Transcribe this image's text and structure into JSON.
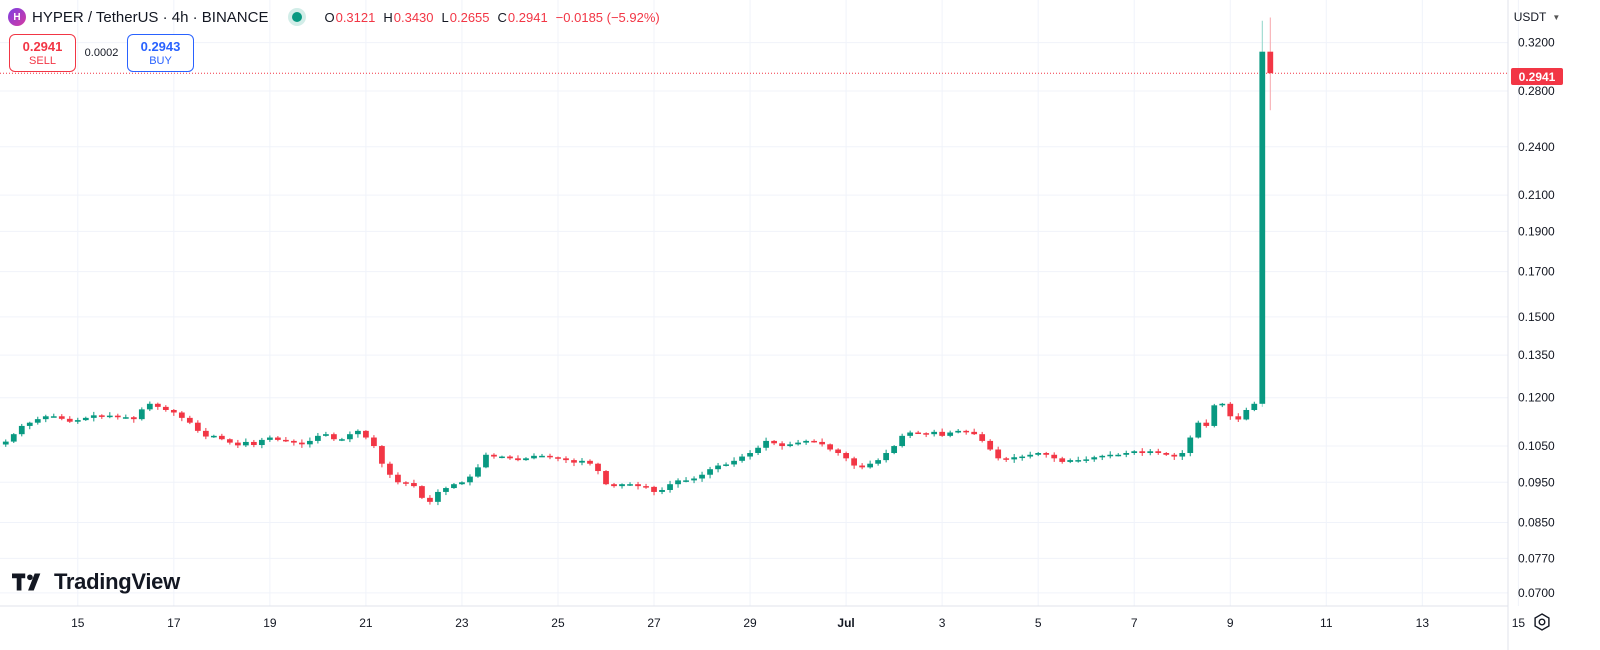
{
  "header": {
    "logo_letter": "H",
    "symbol_title": "HYPER / TetherUS · 4h · BINANCE",
    "ohlc": [
      {
        "label": "O",
        "value": "0.3121"
      },
      {
        "label": "H",
        "value": "0.3430"
      },
      {
        "label": "L",
        "value": "0.2655"
      },
      {
        "label": "C",
        "value": "0.2941"
      },
      {
        "label": "",
        "value": "−0.0185 (−5.92%)"
      }
    ]
  },
  "trade": {
    "sell_price": "0.2941",
    "sell_label": "SELL",
    "spread": "0.0002",
    "buy_price": "0.2943",
    "buy_label": "BUY"
  },
  "currency": "USDT",
  "last_price_label": "0.2941",
  "branding": "TradingView",
  "colors": {
    "up": "#089981",
    "down": "#f23645",
    "grid": "#f0f3fa",
    "price_line": "#f23645"
  },
  "chart_data": {
    "type": "candlestick",
    "scale": "log",
    "grid": true,
    "ylim": [
      0.0675,
      0.36
    ],
    "y_ticks": [
      {
        "value": 0.32,
        "label": "0.3200"
      },
      {
        "value": 0.28,
        "label": "0.2800"
      },
      {
        "value": 0.24,
        "label": "0.2400"
      },
      {
        "value": 0.21,
        "label": "0.2100"
      },
      {
        "value": 0.19,
        "label": "0.1900"
      },
      {
        "value": 0.17,
        "label": "0.1700"
      },
      {
        "value": 0.15,
        "label": "0.1500"
      },
      {
        "value": 0.135,
        "label": "0.1350"
      },
      {
        "value": 0.12,
        "label": "0.1200"
      },
      {
        "value": 0.105,
        "label": "0.1050"
      },
      {
        "value": 0.095,
        "label": "0.0950"
      },
      {
        "value": 0.085,
        "label": "0.0850"
      },
      {
        "value": 0.077,
        "label": "0.0770"
      },
      {
        "value": 0.07,
        "label": "0.0700"
      }
    ],
    "x_ticks": [
      {
        "day": 15,
        "label": "15"
      },
      {
        "day": 17,
        "label": "17"
      },
      {
        "day": 19,
        "label": "19"
      },
      {
        "day": 21,
        "label": "21"
      },
      {
        "day": 23,
        "label": "23"
      },
      {
        "day": 25,
        "label": "25"
      },
      {
        "day": 27,
        "label": "27"
      },
      {
        "day": 29,
        "label": "29"
      },
      {
        "day": 31,
        "label": "Jul"
      },
      {
        "day": 33,
        "label": "3"
      },
      {
        "day": 35,
        "label": "5"
      },
      {
        "day": 37,
        "label": "7"
      },
      {
        "day": 39,
        "label": "9"
      },
      {
        "day": 41,
        "label": "11"
      },
      {
        "day": 43,
        "label": "13"
      },
      {
        "day": 45,
        "label": "15"
      }
    ],
    "x_day_range": [
      13.38,
      46.7
    ],
    "candle_start_day": 13.5,
    "candle_interval_days": 0.16667,
    "last_price": 0.2941,
    "closes": [
      0.1063,
      0.1085,
      0.111,
      0.112,
      0.1131,
      0.114,
      0.114,
      0.1132,
      0.1123,
      0.1128,
      0.1135,
      0.1143,
      0.1138,
      0.1142,
      0.1137,
      0.1137,
      0.1131,
      0.1162,
      0.118,
      0.117,
      0.116,
      0.1152,
      0.1135,
      0.112,
      0.1095,
      0.1078,
      0.108,
      0.107,
      0.106,
      0.1052,
      0.1062,
      0.1053,
      0.1068,
      0.1075,
      0.1068,
      0.1065,
      0.106,
      0.1055,
      0.1065,
      0.108,
      0.1085,
      0.107,
      0.107,
      0.1085,
      0.1095,
      0.1075,
      0.105,
      0.1,
      0.097,
      0.095,
      0.0948,
      0.094,
      0.091,
      0.09,
      0.0925,
      0.0935,
      0.0945,
      0.095,
      0.0965,
      0.099,
      0.1025,
      0.102,
      0.102,
      0.1015,
      0.101,
      0.1015,
      0.1022,
      0.1022,
      0.1018,
      0.1015,
      0.101,
      0.1003,
      0.1008,
      0.1,
      0.098,
      0.0945,
      0.094,
      0.0945,
      0.0945,
      0.094,
      0.0938,
      0.0925,
      0.093,
      0.0945,
      0.0955,
      0.0955,
      0.096,
      0.097,
      0.0985,
      0.0995,
      0.0998,
      0.1008,
      0.102,
      0.103,
      0.1045,
      0.1065,
      0.1058,
      0.105,
      0.1055,
      0.106,
      0.1065,
      0.1062,
      0.1055,
      0.104,
      0.103,
      0.1015,
      0.0995,
      0.099,
      0.1,
      0.101,
      0.103,
      0.105,
      0.108,
      0.109,
      0.1088,
      0.1085,
      0.1092,
      0.108,
      0.109,
      0.1095,
      0.1092,
      0.1085,
      0.1065,
      0.104,
      0.1015,
      0.1012,
      0.1018,
      0.102,
      0.1025,
      0.103,
      0.1025,
      0.1015,
      0.1005,
      0.101,
      0.101,
      0.1012,
      0.1018,
      0.1022,
      0.1025,
      0.1025,
      0.103,
      0.1035,
      0.103,
      0.1035,
      0.103,
      0.1025,
      0.102,
      0.103,
      0.1075,
      0.112,
      0.111,
      0.1175,
      0.118,
      0.114,
      0.113,
      0.116,
      0.118,
      0.3121,
      0.2941
    ]
  }
}
